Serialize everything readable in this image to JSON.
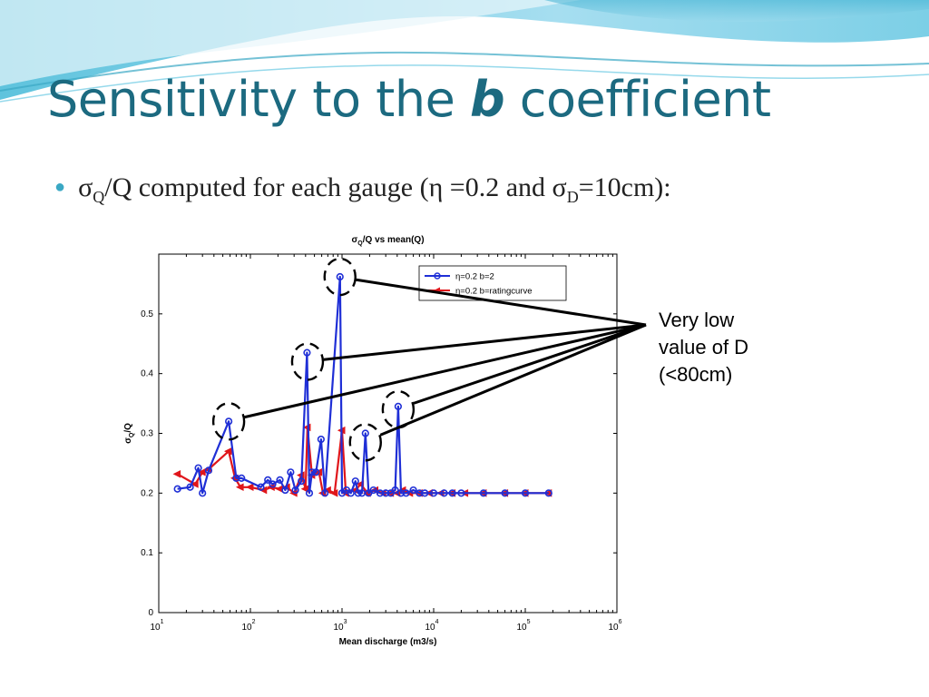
{
  "slide": {
    "title_pre": "Sensitivity to the ",
    "title_em": "b",
    "title_post": " coefficient",
    "bullet": {
      "sigma": "σ",
      "sub_q": "Q",
      "text1": "/Q computed for each gauge (η =0.2 and σ",
      "sub_d": "D",
      "text2": "=10cm):"
    },
    "callout_lines": [
      "Very low",
      "value of D",
      "(<80cm)"
    ]
  },
  "colors": {
    "title": "#1c6a80",
    "accent": "#3aa8c4",
    "series_blue": "#1f2fd6",
    "series_red": "#e0161b"
  },
  "chart_data": {
    "type": "line",
    "title_main": "σ",
    "title_sub": "Q",
    "title_rest": "/Q vs mean(Q)",
    "xlabel": "Mean discharge (m3/s)",
    "ylabel_main": "σ",
    "ylabel_sub": "Q",
    "ylabel_rest": "/Q",
    "x_scale": "log",
    "xlim": [
      10,
      1000000
    ],
    "ylim": [
      0,
      0.6
    ],
    "x_ticks": [
      {
        "base": "10",
        "exp": "1"
      },
      {
        "base": "10",
        "exp": "2"
      },
      {
        "base": "10",
        "exp": "3"
      },
      {
        "base": "10",
        "exp": "4"
      },
      {
        "base": "10",
        "exp": "5"
      },
      {
        "base": "10",
        "exp": "6"
      }
    ],
    "y_ticks": [
      "0",
      "0.1",
      "0.2",
      "0.3",
      "0.4",
      "0.5"
    ],
    "legend_position": "top-right",
    "series": [
      {
        "name": "η=0.2 b=2",
        "marker": "circle",
        "x": [
          16,
          22,
          27,
          30,
          35,
          58,
          70,
          80,
          130,
          155,
          175,
          210,
          240,
          275,
          310,
          360,
          415,
          440,
          470,
          520,
          590,
          650,
          950,
          1000,
          1120,
          1250,
          1400,
          1500,
          1650,
          1800,
          1950,
          2200,
          2600,
          3000,
          3400,
          3800,
          4100,
          4400,
          5000,
          6000,
          7000,
          8000,
          10000,
          13000,
          16000,
          20000,
          35000,
          60000,
          100000,
          180000
        ],
        "values": [
          0.207,
          0.21,
          0.242,
          0.2,
          0.238,
          0.32,
          0.225,
          0.225,
          0.21,
          0.222,
          0.215,
          0.222,
          0.205,
          0.235,
          0.205,
          0.22,
          0.435,
          0.2,
          0.235,
          0.235,
          0.29,
          0.2,
          0.562,
          0.2,
          0.205,
          0.2,
          0.22,
          0.2,
          0.2,
          0.3,
          0.2,
          0.205,
          0.2,
          0.2,
          0.2,
          0.205,
          0.345,
          0.2,
          0.2,
          0.205,
          0.2,
          0.2,
          0.2,
          0.2,
          0.2,
          0.2,
          0.2,
          0.2,
          0.2,
          0.2
        ]
      },
      {
        "name": "η=0.2 b=ratingcurve",
        "marker": "triangle-left",
        "x": [
          16,
          25,
          30,
          35,
          58,
          68,
          78,
          100,
          140,
          170,
          210,
          250,
          300,
          360,
          400,
          420,
          470,
          560,
          620,
          700,
          830,
          1000,
          1100,
          1400,
          1600,
          1900,
          2300,
          2800,
          3400,
          4000,
          4600,
          5500,
          7000,
          9000,
          12000,
          16000,
          22000,
          35000,
          60000,
          100000,
          180000
        ],
        "values": [
          0.232,
          0.215,
          0.235,
          0.24,
          0.27,
          0.225,
          0.21,
          0.21,
          0.205,
          0.21,
          0.207,
          0.21,
          0.2,
          0.23,
          0.207,
          0.31,
          0.23,
          0.235,
          0.2,
          0.205,
          0.2,
          0.305,
          0.2,
          0.205,
          0.215,
          0.2,
          0.205,
          0.2,
          0.2,
          0.2,
          0.205,
          0.2,
          0.2,
          0.2,
          0.2,
          0.2,
          0.2,
          0.2,
          0.2,
          0.2,
          0.2
        ]
      }
    ],
    "annotations": {
      "circled_points": [
        [
          58,
          0.32
        ],
        [
          420,
          0.42
        ],
        [
          950,
          0.562
        ],
        [
          1800,
          0.285
        ],
        [
          4100,
          0.34
        ]
      ],
      "callout_target": "Very low value of D (<80cm)"
    }
  }
}
